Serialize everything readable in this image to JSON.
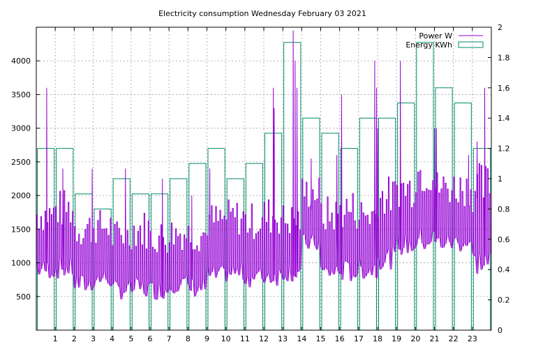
{
  "chart_data": {
    "type": "line",
    "title": "Electricity consumption Wednesday February 03 2021",
    "x_ticks": [
      "1",
      "2",
      "3",
      "4",
      "5",
      "6",
      "7",
      "8",
      "9",
      "10",
      "11",
      "12",
      "13",
      "14",
      "15",
      "16",
      "17",
      "18",
      "19",
      "20",
      "21",
      "22",
      "23"
    ],
    "xlim": [
      0,
      24
    ],
    "y_left": {
      "ylim": [
        0,
        4500
      ],
      "ticks": [
        500,
        1000,
        1500,
        2000,
        2500,
        3000,
        3500,
        4000
      ]
    },
    "y_right": {
      "ylim": [
        0,
        2
      ],
      "ticks": [
        "0",
        "0.2",
        "0.4",
        "0.6",
        "0.8",
        "1",
        "1.2",
        "1.4",
        "1.6",
        "1.8",
        "2"
      ]
    },
    "grid": true,
    "legend_position": "top-right",
    "series": [
      {
        "name": "Power W",
        "axis": "left",
        "style": "line",
        "color": "#9400d3",
        "hourly_low_high": [
          [
            750,
            2000
          ],
          [
            750,
            2100
          ],
          [
            520,
            1800
          ],
          [
            620,
            1800
          ],
          [
            450,
            1650
          ],
          [
            450,
            1800
          ],
          [
            450,
            1650
          ],
          [
            550,
            1700
          ],
          [
            480,
            1700
          ],
          [
            650,
            1900
          ],
          [
            700,
            1950
          ],
          [
            630,
            1900
          ],
          [
            650,
            2000
          ],
          [
            720,
            1900
          ],
          [
            1150,
            2300
          ],
          [
            700,
            2000
          ],
          [
            700,
            2100
          ],
          [
            750,
            2000
          ],
          [
            900,
            2300
          ],
          [
            1100,
            2400
          ],
          [
            1150,
            2700
          ],
          [
            1150,
            2400
          ],
          [
            1150,
            2400
          ],
          [
            800,
            2500
          ]
        ],
        "spikes": [
          {
            "x": 0.55,
            "y": 3600
          },
          {
            "x": 1.4,
            "y": 2400
          },
          {
            "x": 2.95,
            "y": 2400
          },
          {
            "x": 4.7,
            "y": 2400
          },
          {
            "x": 6.65,
            "y": 2250
          },
          {
            "x": 8.2,
            "y": 2000
          },
          {
            "x": 9.15,
            "y": 2400
          },
          {
            "x": 12.5,
            "y": 3600
          },
          {
            "x": 12.55,
            "y": 3300
          },
          {
            "x": 13.55,
            "y": 4450
          },
          {
            "x": 13.65,
            "y": 4000
          },
          {
            "x": 13.75,
            "y": 3600
          },
          {
            "x": 14.5,
            "y": 2550
          },
          {
            "x": 15.85,
            "y": 2600
          },
          {
            "x": 16.1,
            "y": 3500
          },
          {
            "x": 17.85,
            "y": 4000
          },
          {
            "x": 17.95,
            "y": 3600
          },
          {
            "x": 18.0,
            "y": 3000
          },
          {
            "x": 19.2,
            "y": 4000
          },
          {
            "x": 21.0,
            "y": 3000
          },
          {
            "x": 21.1,
            "y": 3000
          },
          {
            "x": 22.8,
            "y": 2600
          },
          {
            "x": 23.25,
            "y": 2800
          },
          {
            "x": 23.65,
            "y": 3600
          }
        ]
      },
      {
        "name": "Energy KWh",
        "axis": "right",
        "style": "steps",
        "color": "#008b6b",
        "hours": [
          0,
          1,
          2,
          3,
          4,
          5,
          6,
          7,
          8,
          9,
          10,
          11,
          12,
          13,
          14,
          15,
          16,
          17,
          18,
          19,
          20,
          21,
          22,
          23
        ],
        "values": [
          1.2,
          1.2,
          0.9,
          0.8,
          1.0,
          0.9,
          0.9,
          1.0,
          1.1,
          1.2,
          1.0,
          1.1,
          1.3,
          1.9,
          1.4,
          1.3,
          1.2,
          1.4,
          1.4,
          1.5,
          1.9,
          1.6,
          1.5,
          1.2
        ]
      }
    ]
  }
}
